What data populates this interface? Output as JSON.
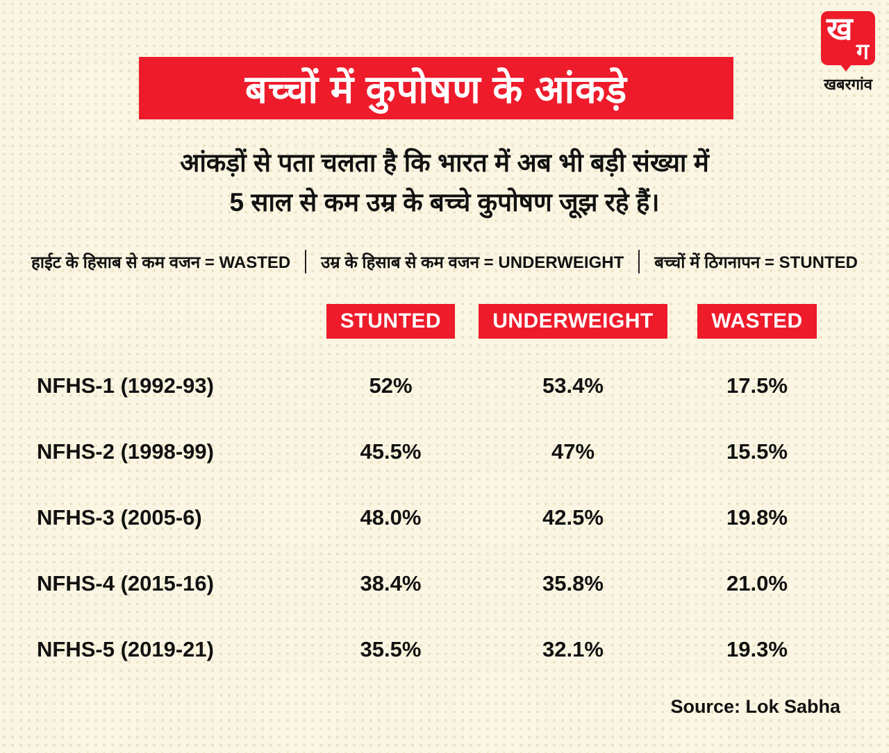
{
  "page": {
    "background_color": "#faf6e3",
    "accent_red": "#ee1b2b"
  },
  "logo": {
    "glyph_top": "ख",
    "glyph_bottom": "ग",
    "wordmark": "खबरगांव"
  },
  "header": {
    "title": "बच्चों में कुपोषण के आंकड़े"
  },
  "subtitle": {
    "line1": "आंकड़ों से पता चलता है कि भारत में अब भी बड़ी संख्या में",
    "line2": "5 साल से कम उम्र के बच्चे कुपोषण जूझ रहे हैं।"
  },
  "legend": {
    "items": [
      "हाईट के हिसाब से कम वजन = WASTED",
      "उम्र के हिसाब से कम वजन = UNDERWEIGHT",
      "बच्चों में ठिगनापन = STUNTED"
    ]
  },
  "table": {
    "columns": [
      "STUNTED",
      "UNDERWEIGHT",
      "WASTED"
    ],
    "rows": [
      {
        "label": "NFHS-1 (1992-93)",
        "stunted": "52%",
        "underweight": "53.4%",
        "wasted": "17.5%"
      },
      {
        "label": "NFHS-2 (1998-99)",
        "stunted": "45.5%",
        "underweight": "47%",
        "wasted": "15.5%"
      },
      {
        "label": "NFHS-3 (2005-6)",
        "stunted": "48.0%",
        "underweight": "42.5%",
        "wasted": "19.8%"
      },
      {
        "label": "NFHS-4 (2015-16)",
        "stunted": "38.4%",
        "underweight": "35.8%",
        "wasted": "21.0%"
      },
      {
        "label": "NFHS-5 (2019-21)",
        "stunted": "35.5%",
        "underweight": "32.1%",
        "wasted": "19.3%"
      }
    ]
  },
  "footer": {
    "source": "Source: Lok Sabha"
  },
  "chart_data": {
    "type": "table",
    "title": "बच्चों में कुपोषण के आंकड़े",
    "categories": [
      "NFHS-1 (1992-93)",
      "NFHS-2 (1998-99)",
      "NFHS-3 (2005-6)",
      "NFHS-4 (2015-16)",
      "NFHS-5 (2019-21)"
    ],
    "series": [
      {
        "name": "STUNTED",
        "values": [
          52,
          45.5,
          48.0,
          38.4,
          35.5
        ]
      },
      {
        "name": "UNDERWEIGHT",
        "values": [
          53.4,
          47,
          42.5,
          35.8,
          32.1
        ]
      },
      {
        "name": "WASTED",
        "values": [
          17.5,
          15.5,
          19.8,
          21.0,
          19.3
        ]
      }
    ],
    "unit": "%",
    "source": "Lok Sabha"
  }
}
